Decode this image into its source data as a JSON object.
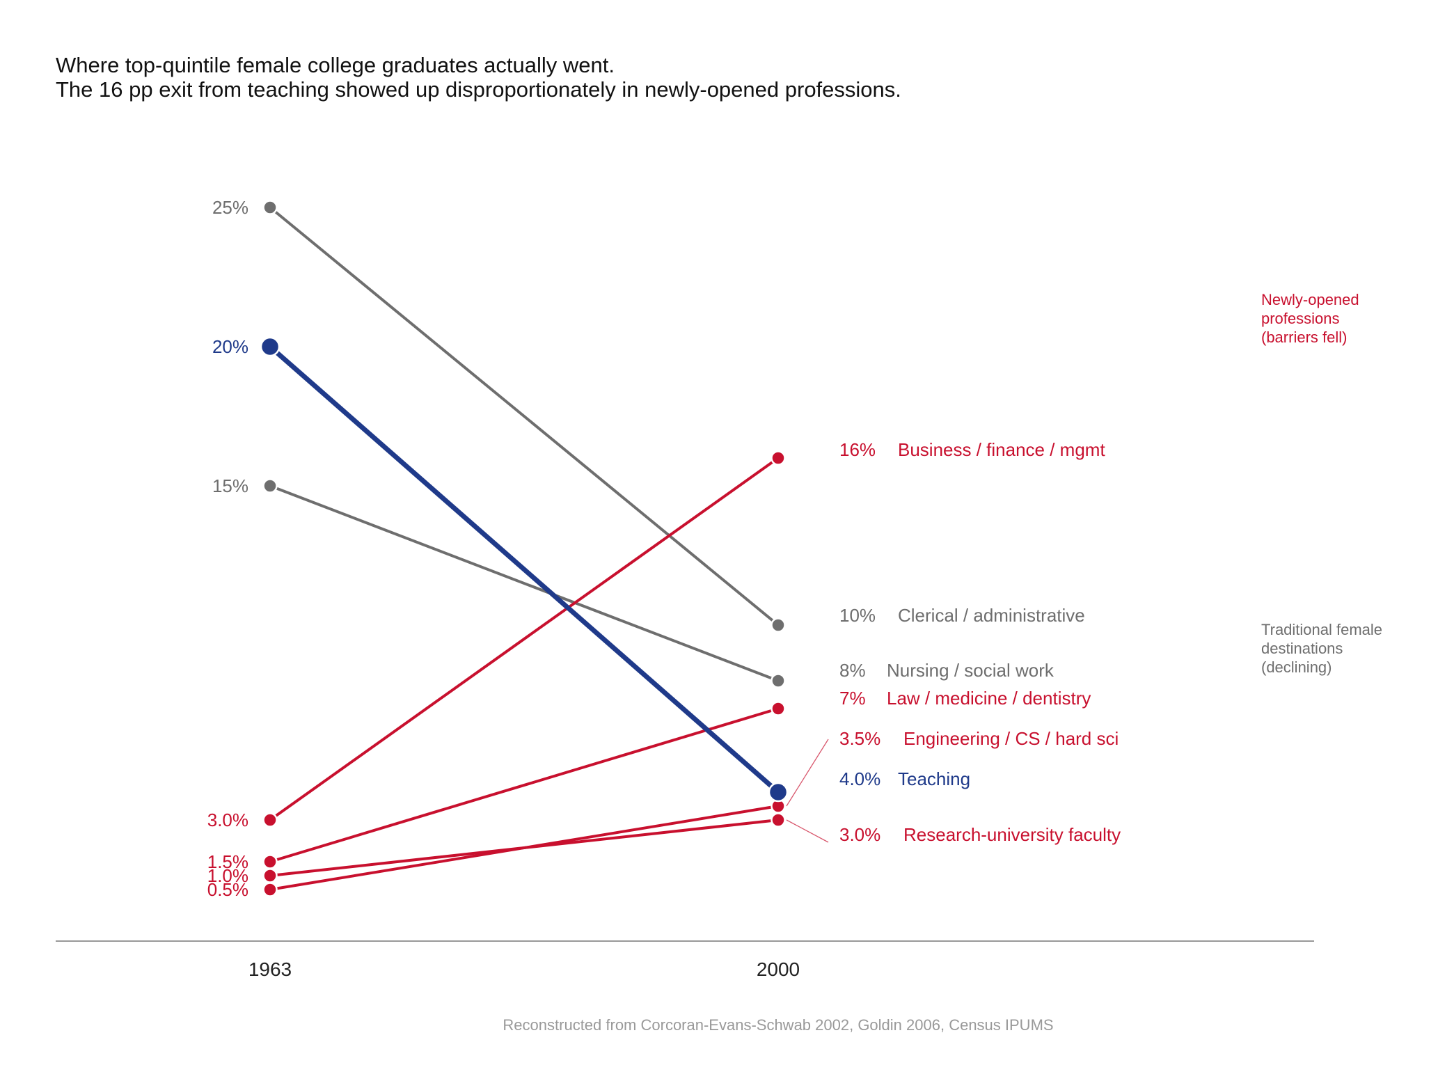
{
  "title": {
    "line1": "Where top-quintile female college graduates actually went.",
    "line2": "The 16 pp exit from teaching showed up disproportionately in newly-opened professions."
  },
  "source": "Reconstructed from Corcoran-Evans-Schwab 2002, Goldin 2006, Census IPUMS",
  "colors": {
    "grey": "#6e6e6e",
    "blue": "#1f3a8a",
    "red": "#c8102e",
    "axis": "#999999"
  },
  "group_notes": {
    "new": [
      "Newly-opened",
      "professions",
      "(barriers fell)"
    ],
    "traditional": [
      "Traditional female",
      "destinations",
      "(declining)"
    ]
  },
  "chart_data": {
    "type": "line",
    "subtype": "slopegraph",
    "x": [
      "1963",
      "2000"
    ],
    "ylim": [
      0,
      25
    ],
    "series": [
      {
        "name": "Clerical / administrative",
        "group": "traditional",
        "color": "#6e6e6e",
        "values": [
          25,
          10
        ],
        "start_label": "25%",
        "end_label": "10%"
      },
      {
        "name": "Teaching",
        "group": "teaching",
        "color": "#1f3a8a",
        "values": [
          20,
          4.0
        ],
        "start_label": "20%",
        "end_label": "4.0%"
      },
      {
        "name": "Nursing / social work",
        "group": "traditional",
        "color": "#6e6e6e",
        "values": [
          15,
          8
        ],
        "start_label": "15%",
        "end_label": "8%"
      },
      {
        "name": "Business / finance / mgmt",
        "group": "new",
        "color": "#c8102e",
        "values": [
          3.0,
          16
        ],
        "start_label": "3.0%",
        "end_label": "16%"
      },
      {
        "name": "Law / medicine / dentistry",
        "group": "new",
        "color": "#c8102e",
        "values": [
          1.5,
          7
        ],
        "start_label": "1.5%",
        "end_label": "7%"
      },
      {
        "name": "Engineering / CS / hard sci",
        "group": "new",
        "color": "#c8102e",
        "values": [
          0.5,
          3.5
        ],
        "start_label": "0.5%",
        "end_label": "3.5%"
      },
      {
        "name": "Research-university faculty",
        "group": "new",
        "color": "#c8102e",
        "values": [
          1.0,
          3.0
        ],
        "start_label": "1.0%",
        "end_label": "3.0%"
      }
    ]
  }
}
